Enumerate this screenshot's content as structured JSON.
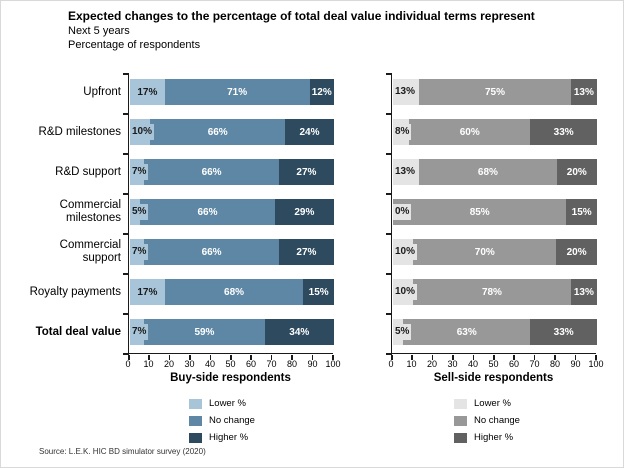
{
  "header": {
    "title": "Expected changes to the percentage of total deal value individual terms represent",
    "subtitle": "Next 5 years",
    "unit_label": "Percentage of respondents"
  },
  "footer": {
    "source": "Source: L.E.K. HIC BD simulator survey (2020)"
  },
  "chart_data": [
    {
      "type": "bar",
      "orientation": "horizontal-stacked",
      "title": "Buy-side respondents",
      "categories": [
        "Upfront",
        "R&D milestones",
        "R&D support",
        "Commercial milestones",
        "Commercial support",
        "Royalty payments",
        "Total deal value"
      ],
      "series": [
        {
          "name": "Lower %",
          "color": "#a8c4d8",
          "values": [
            17,
            10,
            7,
            5,
            7,
            17,
            7
          ]
        },
        {
          "name": "No change",
          "color": "#5d87a4",
          "values": [
            71,
            66,
            66,
            66,
            66,
            68,
            59
          ]
        },
        {
          "name": "Higher %",
          "color": "#2d4a5e",
          "values": [
            12,
            24,
            27,
            29,
            27,
            15,
            34
          ]
        }
      ],
      "xlim": [
        0,
        100
      ],
      "x_ticks": [
        0,
        10,
        20,
        30,
        40,
        50,
        60,
        70,
        80,
        90,
        100
      ],
      "value_suffix": "%",
      "legend_position": "bottom",
      "grid": false
    },
    {
      "type": "bar",
      "orientation": "horizontal-stacked",
      "title": "Sell-side respondents",
      "categories": [
        "Upfront",
        "R&D milestones",
        "R&D support",
        "Commercial milestones",
        "Commercial support",
        "Royalty payments",
        "Total deal value"
      ],
      "series": [
        {
          "name": "Lower %",
          "color": "#e4e4e4",
          "values": [
            13,
            8,
            13,
            0,
            10,
            10,
            5
          ]
        },
        {
          "name": "No change",
          "color": "#989898",
          "values": [
            75,
            60,
            68,
            85,
            70,
            78,
            63
          ]
        },
        {
          "name": "Higher %",
          "color": "#616161",
          "values": [
            13,
            33,
            20,
            15,
            20,
            13,
            33
          ]
        }
      ],
      "xlim": [
        0,
        100
      ],
      "x_ticks": [
        0,
        10,
        20,
        30,
        40,
        50,
        60,
        70,
        80,
        90,
        100
      ],
      "value_suffix": "%",
      "legend_position": "bottom",
      "grid": false
    }
  ],
  "style": {
    "label_color_on_light": "#1a1a1a",
    "label_color_on_dark": "#ffffff",
    "axis_color": "#1a1a1a"
  }
}
